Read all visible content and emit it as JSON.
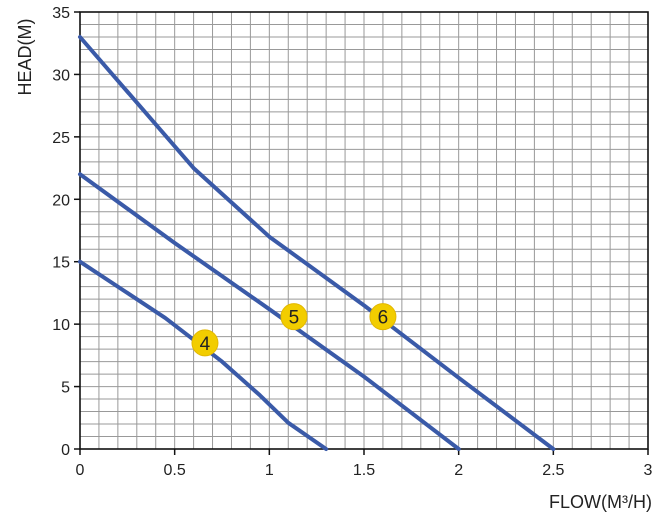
{
  "chart_data": {
    "type": "line",
    "title": "",
    "xlabel": "FLOW(M³/H)",
    "ylabel": "HEAD(M)",
    "xlim": [
      0,
      3
    ],
    "ylim": [
      0,
      35
    ],
    "x_ticks": [
      0,
      0.5,
      1,
      1.5,
      2,
      2.5,
      3
    ],
    "x_tick_labels": [
      "0",
      "0.5",
      "1",
      "1.5",
      "2",
      "2.5",
      "3"
    ],
    "y_ticks": [
      0,
      5,
      10,
      15,
      20,
      25,
      30,
      35
    ],
    "y_tick_labels": [
      "0",
      "5",
      "10",
      "15",
      "20",
      "25",
      "30",
      "35"
    ],
    "grid": true,
    "series": [
      {
        "name": "4",
        "x": [
          0,
          0.45,
          0.75,
          0.95,
          1.1,
          1.3
        ],
        "y": [
          15,
          10.5,
          7,
          4.3,
          2.1,
          0
        ],
        "marker_at": [
          0.66,
          8.5
        ]
      },
      {
        "name": "5",
        "x": [
          0,
          0.5,
          1,
          1.5,
          2
        ],
        "y": [
          22,
          16.5,
          11.2,
          5.8,
          0
        ],
        "marker_at": [
          1.13,
          10.6
        ]
      },
      {
        "name": "6",
        "x": [
          0,
          0.6,
          1,
          1.5,
          2,
          2.5
        ],
        "y": [
          33,
          22.5,
          17,
          11.5,
          5.7,
          0
        ],
        "marker_at": [
          1.6,
          10.6
        ]
      }
    ],
    "colors": {
      "line": "#3a5aa8",
      "grid": "#999999",
      "marker_fill": "#f2cd00",
      "marker_stroke": "#e3b800",
      "text": "#222222",
      "axis": "#111111"
    }
  }
}
